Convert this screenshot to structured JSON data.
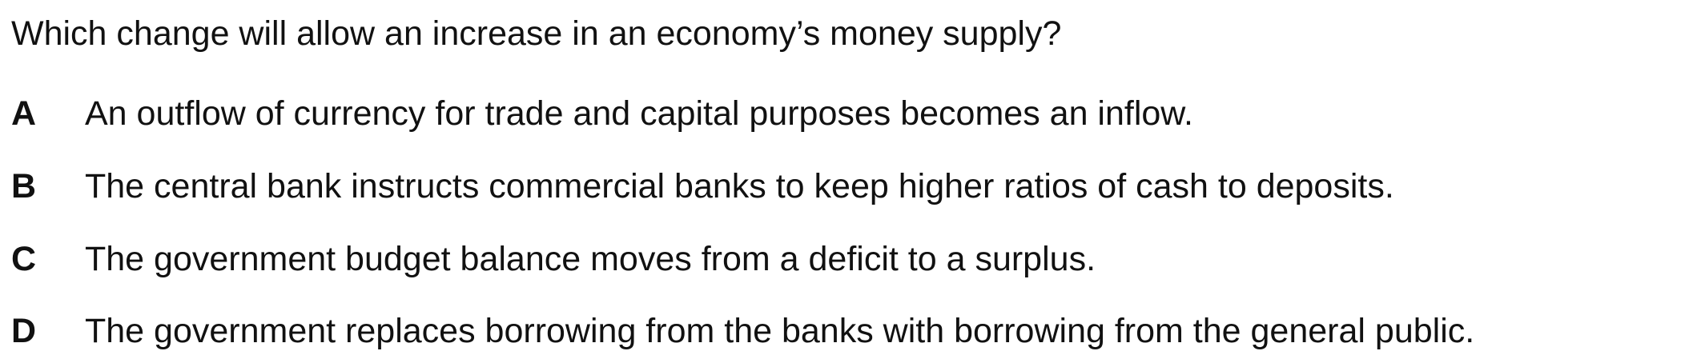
{
  "question": {
    "text": "Which change will allow an increase in an economy’s money supply?"
  },
  "options": [
    {
      "letter": "A",
      "text": "An outflow of currency for trade and capital purposes becomes an inflow."
    },
    {
      "letter": "B",
      "text": "The central bank instructs commercial banks to keep higher ratios of cash to deposits."
    },
    {
      "letter": "C",
      "text": "The government budget balance moves from a deficit to a surplus."
    },
    {
      "letter": "D",
      "text": "The government replaces borrowing from the banks with borrowing from the general public."
    }
  ]
}
